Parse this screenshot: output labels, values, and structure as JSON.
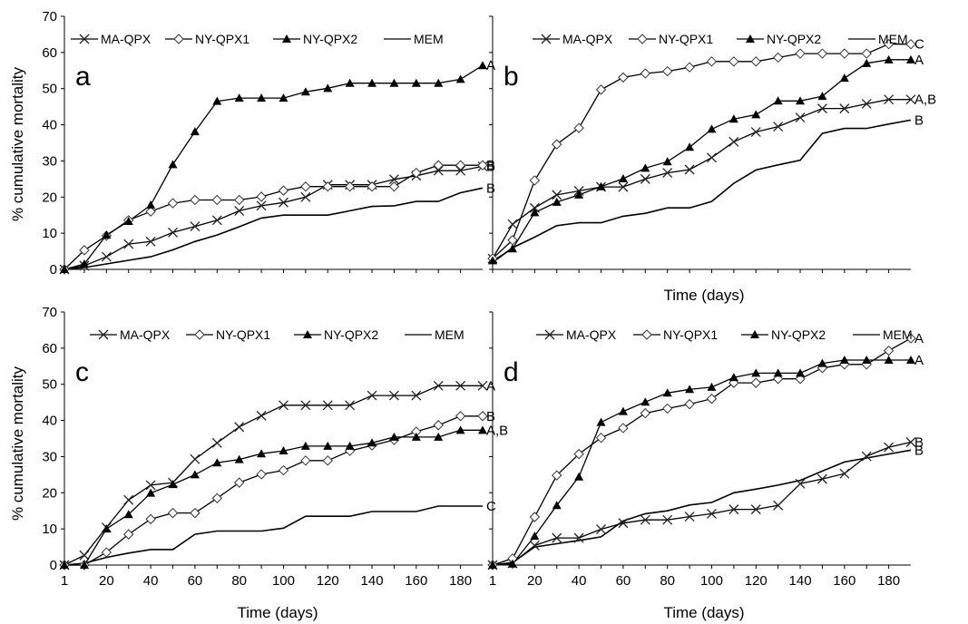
{
  "ylabel": "% cumulative mortality",
  "xlabel": "Time (days)",
  "chart_data": [
    {
      "type": "line",
      "panel": "a",
      "x": [
        1,
        10,
        20,
        30,
        40,
        50,
        60,
        70,
        80,
        90,
        100,
        110,
        120,
        130,
        140,
        150,
        160,
        170,
        180,
        190
      ],
      "xticks": [],
      "ylim": [
        0,
        70
      ],
      "yticks": [
        0,
        10,
        20,
        30,
        40,
        50,
        60,
        70
      ],
      "legend_position": "top",
      "series": [
        {
          "name": "MA-QPX",
          "marker": "x",
          "values": [
            0,
            1,
            3.5,
            7,
            7.7,
            10.2,
            11.9,
            13.6,
            16.2,
            17.6,
            18.5,
            20,
            23.4,
            23.4,
            23.4,
            24.9,
            25.9,
            27.3,
            27.3,
            28.5
          ],
          "end_label": "B"
        },
        {
          "name": "NY-QPX1",
          "marker": "diamond",
          "values": [
            0,
            5.3,
            9.3,
            13.6,
            16,
            18.3,
            19.2,
            19.2,
            19.2,
            20.1,
            21.8,
            22.9,
            22.9,
            22.9,
            22.9,
            22.9,
            26.7,
            28.8,
            28.8,
            28.8
          ],
          "end_label": "B"
        },
        {
          "name": "NY-QPX2",
          "marker": "triangle",
          "values": [
            0,
            1.5,
            9.5,
            13.3,
            17.8,
            29,
            38.1,
            46.5,
            47.4,
            47.4,
            47.4,
            49.1,
            50.1,
            51.5,
            51.5,
            51.5,
            51.5,
            51.5,
            52.6,
            56.4
          ],
          "end_label": "A"
        },
        {
          "name": "MEM",
          "marker": "none",
          "values": [
            0,
            0.5,
            1.5,
            2.5,
            3.5,
            5.4,
            7.7,
            9.5,
            11.8,
            14.2,
            15,
            15,
            15,
            16.2,
            17.4,
            17.6,
            18.8,
            18.8,
            21.2,
            22.5
          ],
          "end_label": "B"
        }
      ]
    },
    {
      "type": "line",
      "panel": "b",
      "x": [
        1,
        10,
        20,
        30,
        40,
        50,
        60,
        70,
        80,
        90,
        100,
        110,
        120,
        130,
        140,
        150,
        160,
        170,
        180,
        190
      ],
      "xticks": [],
      "ylim": [
        0,
        70
      ],
      "yticks": [],
      "legend_position": "top",
      "series": [
        {
          "name": "MA-QPX",
          "marker": "x",
          "values": [
            3,
            12.5,
            17,
            20.6,
            21.7,
            22.8,
            22.8,
            25,
            26.7,
            27.6,
            30.9,
            35.3,
            38,
            39.5,
            42,
            44.5,
            44.5,
            45.8,
            47,
            47
          ],
          "end_label": "A,B"
        },
        {
          "name": "NY-QPX1",
          "marker": "diamond",
          "values": [
            3,
            8.1,
            24.6,
            34.6,
            39.1,
            49.7,
            53.1,
            54.2,
            54.8,
            55.9,
            57.5,
            57.5,
            57.5,
            58.6,
            59.7,
            59.7,
            59.7,
            59.7,
            62.3,
            62.3
          ],
          "end_label": "C"
        },
        {
          "name": "NY-QPX2",
          "marker": "triangle",
          "values": [
            2.4,
            5.7,
            15.7,
            18.6,
            20.6,
            22.9,
            25.1,
            28,
            29.8,
            33.8,
            38.8,
            41.6,
            42.8,
            46.6,
            46.6,
            47.9,
            52.9,
            57,
            58,
            58
          ],
          "end_label": "A"
        },
        {
          "name": "MEM",
          "marker": "none",
          "values": [
            1.9,
            6,
            8.9,
            12.1,
            12.9,
            12.9,
            14.7,
            15.5,
            17,
            17,
            18.8,
            23.8,
            27.5,
            28.9,
            30.2,
            37.6,
            39,
            39,
            40.2,
            41.3
          ],
          "end_label": "B"
        }
      ]
    },
    {
      "type": "line",
      "panel": "c",
      "x": [
        1,
        10,
        20,
        30,
        40,
        50,
        60,
        70,
        80,
        90,
        100,
        110,
        120,
        130,
        140,
        150,
        160,
        170,
        180,
        190
      ],
      "xticks": [
        1,
        20,
        40,
        60,
        80,
        100,
        120,
        140,
        160,
        180
      ],
      "ylim": [
        0,
        70
      ],
      "yticks": [
        0,
        10,
        20,
        30,
        40,
        50,
        60,
        70
      ],
      "legend_position": "top",
      "series": [
        {
          "name": "MA-QPX",
          "marker": "x",
          "values": [
            0,
            2.7,
            10.4,
            18,
            22.1,
            22.8,
            29.3,
            33.8,
            38.2,
            41.3,
            44.2,
            44.2,
            44.2,
            44.2,
            46.9,
            46.9,
            46.9,
            49.6,
            49.6,
            49.6
          ],
          "end_label": "A"
        },
        {
          "name": "NY-QPX1",
          "marker": "diamond",
          "values": [
            0,
            0,
            3.5,
            8.5,
            12.7,
            14.4,
            14.4,
            18.5,
            22.8,
            25.1,
            26.2,
            28.9,
            28.9,
            31.6,
            33.1,
            34.6,
            36.9,
            38.7,
            41.2,
            41.2
          ],
          "end_label": "B"
        },
        {
          "name": "NY-QPX2",
          "marker": "triangle",
          "values": [
            0,
            0,
            10,
            14,
            19.9,
            22.3,
            25,
            28.3,
            29.2,
            30.8,
            31.6,
            32.9,
            32.9,
            32.9,
            33.8,
            35.4,
            35.4,
            35.4,
            37.3,
            37.3
          ],
          "end_label": "A,B"
        },
        {
          "name": "MEM",
          "marker": "none",
          "values": [
            0,
            0.5,
            2.1,
            3.3,
            4.3,
            4.3,
            8.5,
            9.4,
            9.4,
            9.4,
            10.2,
            13.5,
            13.5,
            13.5,
            14.8,
            14.8,
            14.8,
            16.3,
            16.3,
            16.3
          ],
          "end_label": "C"
        }
      ]
    },
    {
      "type": "line",
      "panel": "d",
      "x": [
        1,
        10,
        20,
        30,
        40,
        50,
        60,
        70,
        80,
        90,
        100,
        110,
        120,
        130,
        140,
        150,
        160,
        170,
        180,
        190
      ],
      "xticks": [
        1,
        20,
        40,
        60,
        80,
        100,
        120,
        140,
        160,
        180
      ],
      "ylim": [
        0,
        70
      ],
      "yticks": [],
      "legend_position": "top",
      "series": [
        {
          "name": "MA-QPX",
          "marker": "x",
          "values": [
            0,
            0.5,
            5.4,
            7.5,
            7.5,
            9.9,
            11.6,
            12.5,
            12.5,
            13.4,
            14.2,
            15.4,
            15.4,
            16.5,
            22.5,
            23.8,
            25.3,
            30.1,
            32.6,
            34
          ],
          "end_label": "B"
        },
        {
          "name": "NY-QPX1",
          "marker": "diamond",
          "values": [
            0,
            1.8,
            13.3,
            24.8,
            30.7,
            35.2,
            37.9,
            42,
            43.3,
            44.5,
            46,
            50.4,
            50.4,
            51.5,
            51.5,
            54.5,
            55.5,
            55.5,
            59.3,
            62.7
          ],
          "end_label": "A"
        },
        {
          "name": "NY-QPX2",
          "marker": "triangle",
          "values": [
            0,
            0.3,
            8,
            16.5,
            24.4,
            39.5,
            42.5,
            45.1,
            47.6,
            48.6,
            49.2,
            51.9,
            53.1,
            53.1,
            53.1,
            55.8,
            56.7,
            56.7,
            56.7,
            56.7
          ],
          "end_label": "A"
        },
        {
          "name": "MEM",
          "marker": "none",
          "values": [
            0,
            0.7,
            5,
            5.9,
            6.8,
            7.8,
            12.2,
            14.2,
            15,
            16.6,
            17.3,
            20,
            21,
            22.1,
            23.4,
            26,
            28.5,
            29.6,
            30.7,
            31.8
          ],
          "end_label": "B"
        }
      ]
    }
  ]
}
